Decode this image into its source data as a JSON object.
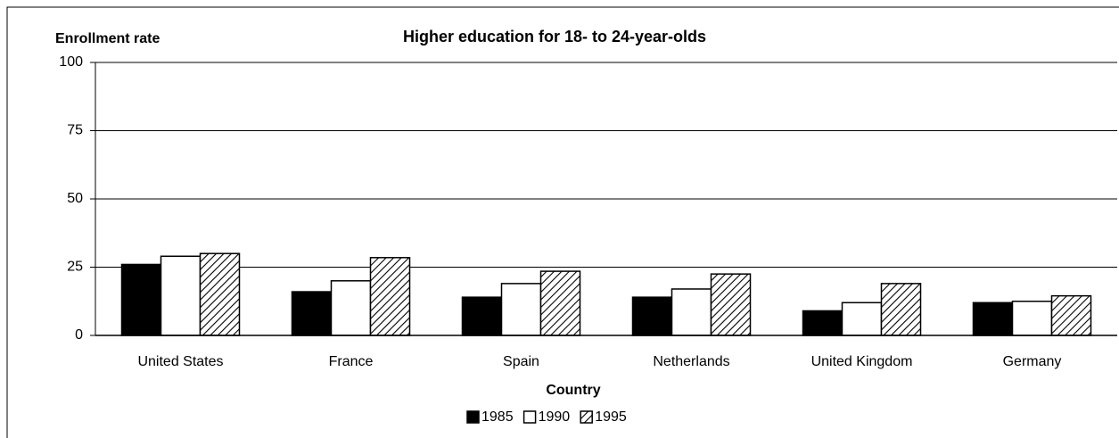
{
  "chart_data": {
    "type": "bar",
    "title": "Higher education for 18- to 24-year-olds",
    "y_label": "Enrollment rate",
    "x_label": "Country",
    "categories": [
      "United States",
      "France",
      "Spain",
      "Netherlands",
      "United Kingdom",
      "Germany"
    ],
    "series": [
      {
        "name": "1985",
        "color": "#000000",
        "values": [
          26,
          16,
          14,
          14,
          9,
          12
        ]
      },
      {
        "name": "1990",
        "color": "#ffffff",
        "values": [
          29,
          20,
          19,
          17,
          12,
          12.5
        ]
      },
      {
        "name": "1995",
        "color": "#000000",
        "pattern": "hatch",
        "values": [
          30,
          28.5,
          23.5,
          22.5,
          19,
          14.5
        ]
      }
    ],
    "ylim": [
      0,
      100
    ],
    "yticks": [
      0,
      25,
      50,
      75,
      100
    ],
    "grid": true,
    "legend": "bottom"
  }
}
